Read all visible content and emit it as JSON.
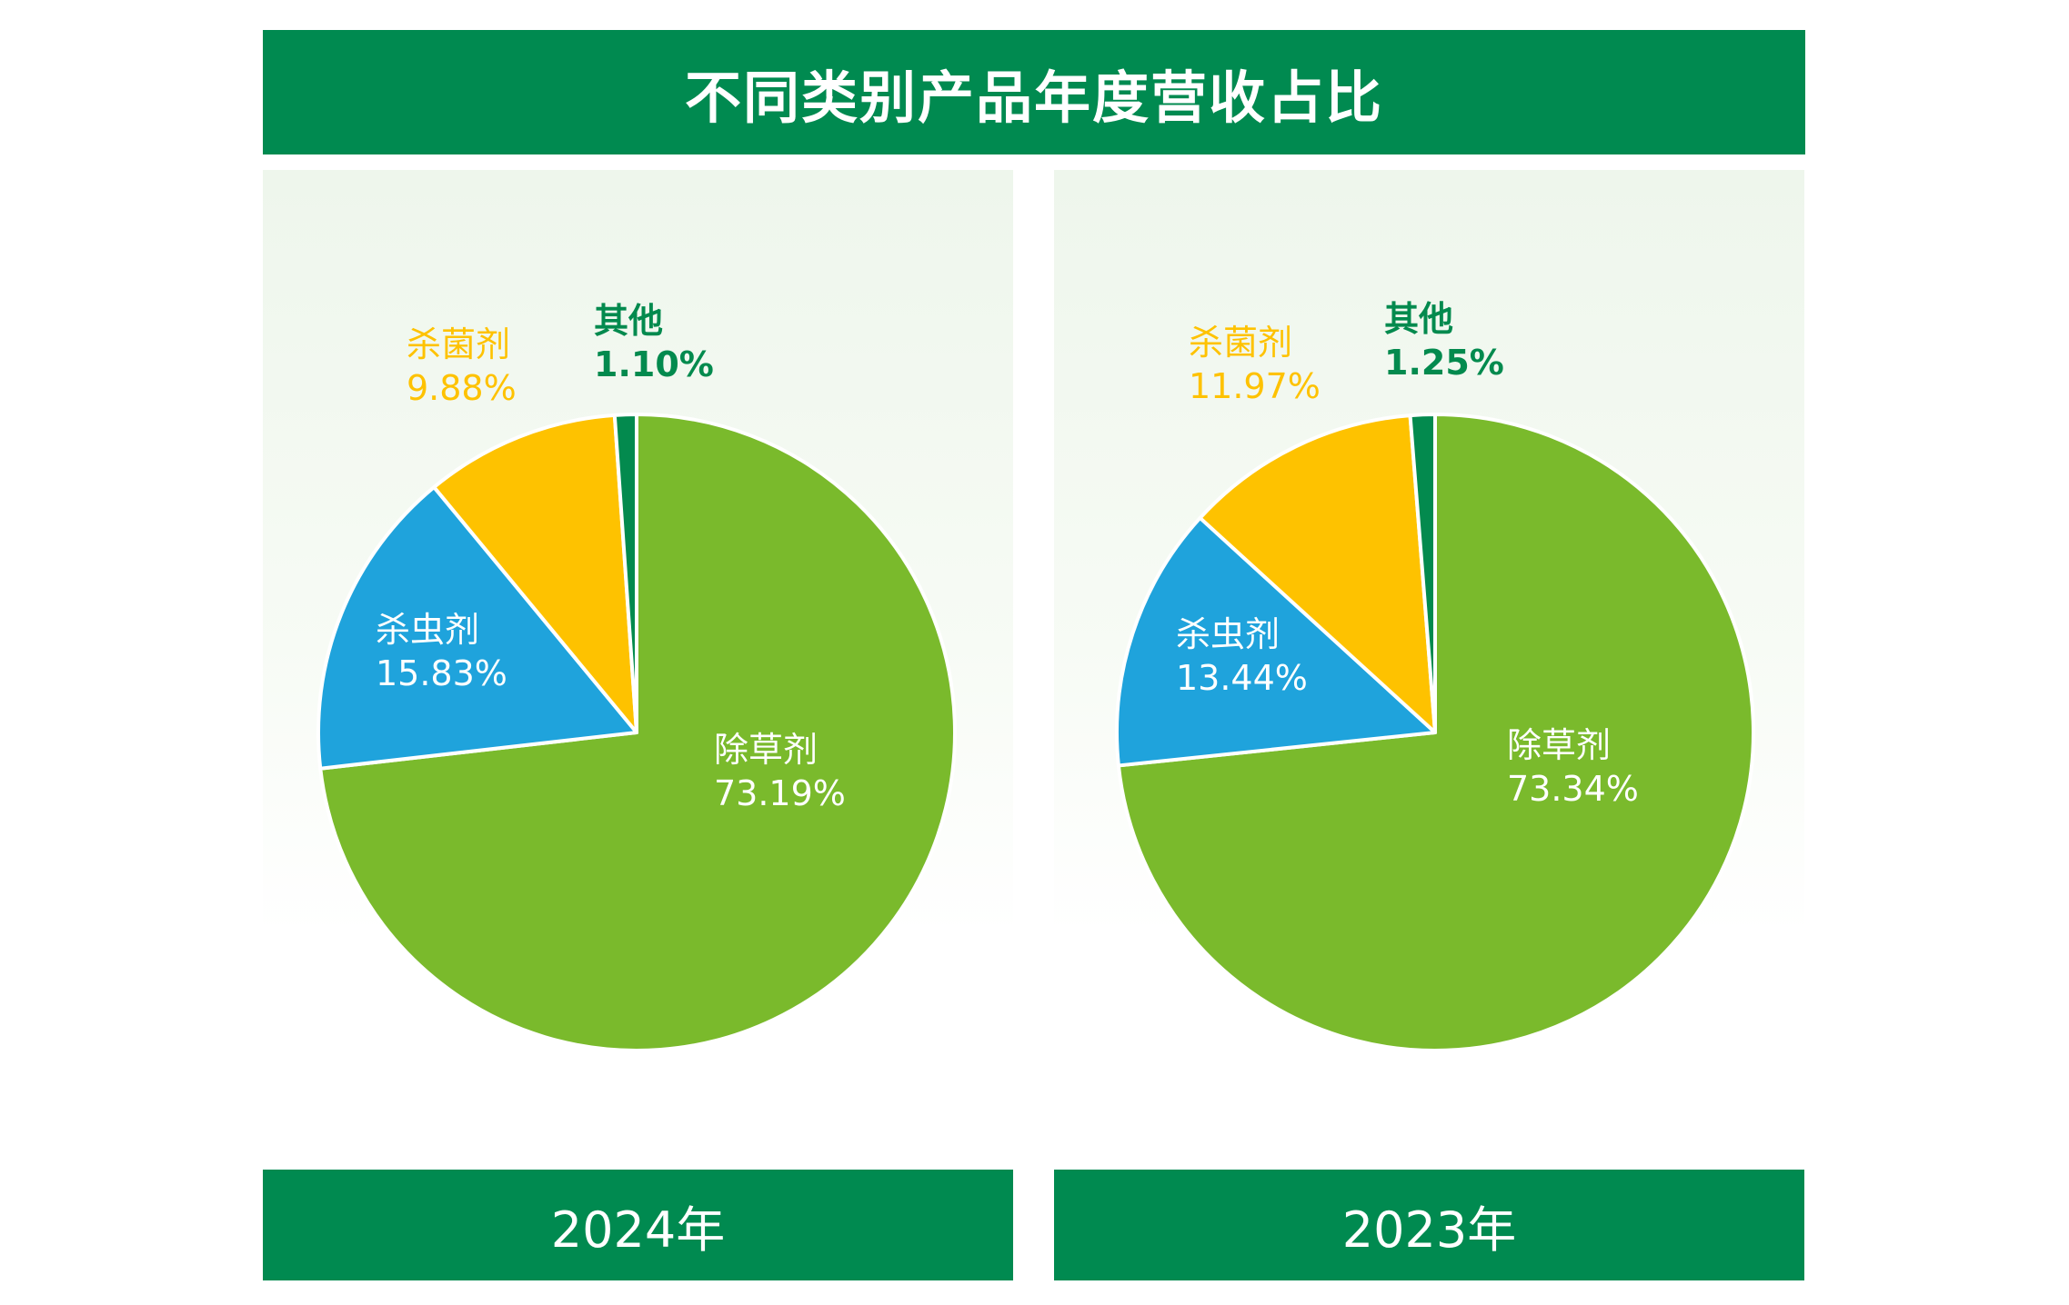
{
  "title": "不同类别产品年度营收占比",
  "colors": {
    "header_bg": "#008a50",
    "herbicide": "#7aba2c",
    "insecticide": "#1fa3dc",
    "fungicide": "#fec200",
    "other": "#038a4e"
  },
  "chart_data": [
    {
      "type": "pie",
      "year_label": "2024年",
      "slices": [
        {
          "name": "除草剂",
          "value": 73.19,
          "label": "73.19%"
        },
        {
          "name": "杀虫剂",
          "value": 15.83,
          "label": "15.83%"
        },
        {
          "name": "杀菌剂",
          "value": 9.88,
          "label": "9.88%"
        },
        {
          "name": "其他",
          "value": 1.1,
          "label": "1.10%"
        }
      ]
    },
    {
      "type": "pie",
      "year_label": "2023年",
      "slices": [
        {
          "name": "除草剂",
          "value": 73.34,
          "label": "73.34%"
        },
        {
          "name": "杀虫剂",
          "value": 13.44,
          "label": "13.44%"
        },
        {
          "name": "杀菌剂",
          "value": 11.97,
          "label": "11.97%"
        },
        {
          "name": "其他",
          "value": 1.25,
          "label": "1.25%"
        }
      ]
    }
  ]
}
